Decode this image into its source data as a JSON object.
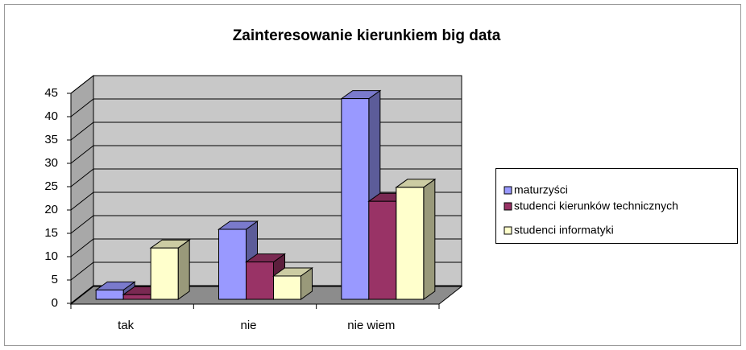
{
  "chart_data": {
    "type": "bar3d",
    "title": "Zainteresowanie kierunkiem big data",
    "categories": [
      "tak",
      "nie",
      "nie wiem"
    ],
    "series": [
      {
        "name": "maturzyści",
        "color": "#9999ff",
        "values": [
          2,
          15,
          43
        ]
      },
      {
        "name": "studenci kierunków technicznych",
        "color": "#993366",
        "values": [
          1,
          8,
          21
        ]
      },
      {
        "name": "studenci informatyki",
        "color": "#ffffcc",
        "values": [
          11,
          5,
          24
        ]
      }
    ],
    "ylim": [
      0,
      45
    ],
    "yticks": [
      0,
      5,
      10,
      15,
      20,
      25,
      30,
      35,
      40,
      45
    ],
    "grid": true,
    "legend": "right"
  }
}
